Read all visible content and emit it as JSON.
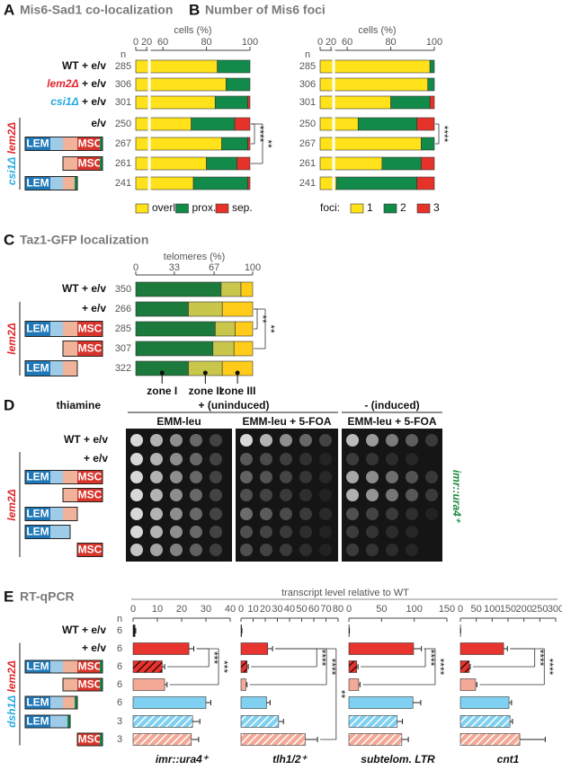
{
  "genotype_colors": {
    "lem2Δ": "#e0262b",
    "csi1Δ": "#27aae1",
    "dsh1Δ": "#27aae1"
  },
  "construct": {
    "lem": "LEM",
    "msc": "MSC"
  },
  "panel_d": {
    "label": "D",
    "condition_label": "thiamine",
    "conditions": [
      {
        "label": "+ (uninduced)",
        "media": [
          "EMM-leu",
          "EMM-leu + 5-FOA"
        ]
      },
      {
        "label": "- (induced)",
        "media": [
          "EMM-leu + 5-FOA"
        ]
      }
    ],
    "categories": [
      "WT + e/v",
      "+ e/v"
    ],
    "group_label": "lem2Δ",
    "reporter": "imr::ura4⁺"
  },
  "chart_data": [
    {
      "type": "stacked_bar",
      "panel": "A",
      "title": "Mis6-Sad1 co-localization",
      "xlabel": "cells  (%)",
      "n_label": "n",
      "categories": [
        "WT + e/v",
        "lem2Δ + e/v",
        "csi1Δ + e/v",
        "e/v",
        null,
        null,
        null
      ],
      "group_label": "csi1Δ lem2Δ",
      "n": [
        285,
        306,
        301,
        250,
        267,
        261,
        241
      ],
      "xlim": [
        0,
        100
      ],
      "xticks": [
        0,
        20,
        60,
        80,
        100
      ],
      "xbreak": [
        20,
        55
      ],
      "legend": "below",
      "series": [
        {
          "name": "overl.",
          "color": "#ffe21a",
          "values": [
            85,
            89,
            84,
            73,
            87,
            80,
            74
          ]
        },
        {
          "name": "prox.",
          "color": "#128a4a",
          "values": [
            15,
            11,
            15,
            20,
            12,
            14,
            25
          ]
        },
        {
          "name": "sep.",
          "color": "#e5332a",
          "values": [
            0,
            0,
            1,
            7,
            1,
            6,
            1
          ]
        }
      ],
      "significance": [
        "****",
        "**"
      ]
    },
    {
      "type": "stacked_bar",
      "panel": "B",
      "title": "Number of Mis6 foci",
      "xlabel": "cells  (%)",
      "n_label": "n",
      "n": [
        285,
        306,
        301,
        250,
        267,
        261,
        241
      ],
      "xlim": [
        0,
        100
      ],
      "xticks": [
        0,
        20,
        60,
        80,
        100
      ],
      "xbreak": [
        20,
        55
      ],
      "legend": "below",
      "legend_title": "foci:",
      "series": [
        {
          "name": "1",
          "color": "#ffe21a",
          "values": [
            98,
            97,
            80,
            65,
            94,
            76,
            55
          ]
        },
        {
          "name": "2",
          "color": "#128a4a",
          "values": [
            2,
            3,
            18,
            27,
            6,
            18,
            37
          ]
        },
        {
          "name": "3",
          "color": "#e5332a",
          "values": [
            0,
            0,
            2,
            8,
            0,
            6,
            8
          ]
        }
      ],
      "significance": [
        "****"
      ]
    },
    {
      "type": "stacked_bar",
      "panel": "C",
      "title": "Taz1-GFP localization",
      "xlabel": "telomeres (%)",
      "categories": [
        "WT + e/v",
        "+ e/v",
        null,
        null,
        null
      ],
      "group_label": "lem2Δ",
      "n": [
        350,
        266,
        285,
        307,
        322
      ],
      "xlim": [
        0,
        100
      ],
      "xticks": [
        0,
        33,
        67,
        100
      ],
      "legend": "under-segments",
      "series": [
        {
          "name": "zone I",
          "color": "#1c7a3c",
          "values": [
            73,
            45,
            68,
            66,
            45
          ]
        },
        {
          "name": "zone II",
          "color": "#c9c64c",
          "values": [
            17,
            29,
            17,
            18,
            29
          ]
        },
        {
          "name": "zone III",
          "color": "#ffcc1a",
          "values": [
            10,
            26,
            15,
            16,
            26
          ]
        }
      ],
      "significance": [
        "**",
        "**"
      ]
    },
    {
      "type": "bar",
      "panel": "E",
      "title": "RT-qPCR",
      "axis_title": "transcript level relative to WT",
      "n_label": "n",
      "categories": [
        "WT + e/v",
        "+ e/v",
        null,
        null,
        null,
        null,
        null
      ],
      "group_label": "dsh1Δ lem2Δ",
      "n": [
        6,
        6,
        6,
        6,
        6,
        3,
        3
      ],
      "xlabel": "imr::ura4⁺",
      "xlim": [
        0,
        40
      ],
      "xticks": [
        0,
        10,
        20,
        30,
        40
      ],
      "values": [
        0.8,
        23,
        12,
        13,
        30,
        24.5,
        24
      ],
      "errors": [
        0.3,
        2,
        1,
        1,
        2,
        3,
        3
      ],
      "colors": [
        "#111111",
        "#e8342e",
        "#e8342e",
        "#f4a896",
        "#7fd0f1",
        "#7fd0f1",
        "#f4a896"
      ],
      "hatch": [
        null,
        null,
        "#3a0c0c",
        null,
        null,
        "#ffffff",
        "#ffffff"
      ],
      "significance": [
        "***",
        "***"
      ]
    },
    {
      "type": "bar",
      "xlabel": "tlh1/2⁺",
      "xlim": [
        0,
        80
      ],
      "xticks": [
        0,
        10,
        20,
        30,
        40,
        50,
        60,
        70,
        80
      ],
      "values": [
        0.5,
        22,
        5,
        4,
        21,
        31,
        53
      ],
      "errors": [
        0.3,
        4,
        1,
        1,
        3,
        4,
        10
      ],
      "colors": [
        "#111111",
        "#e8342e",
        "#e8342e",
        "#f4a896",
        "#7fd0f1",
        "#7fd0f1",
        "#f4a896"
      ],
      "hatch": [
        null,
        null,
        "#3a0c0c",
        null,
        null,
        "#ffffff",
        "#ffffff"
      ],
      "significance": [
        "****",
        "****",
        "**"
      ]
    },
    {
      "type": "bar",
      "xlabel": "subtelom. LTR",
      "xlim": [
        0,
        150
      ],
      "xticks": [
        0,
        50,
        100,
        150
      ],
      "values": [
        0.5,
        99,
        12,
        15,
        98,
        74,
        81
      ],
      "errors": [
        0.3,
        12,
        2,
        2,
        12,
        8,
        10
      ],
      "colors": [
        "#111111",
        "#e8342e",
        "#e8342e",
        "#f4a896",
        "#7fd0f1",
        "#7fd0f1",
        "#f4a896"
      ],
      "hatch": [
        null,
        null,
        "#3a0c0c",
        null,
        null,
        "#ffffff",
        "#ffffff"
      ],
      "significance": [
        "****",
        "****"
      ]
    },
    {
      "type": "bar",
      "xlabel": "cnt1",
      "xlim": [
        0,
        300
      ],
      "xticks": [
        0,
        50,
        100,
        150,
        200,
        250,
        300
      ],
      "values": [
        0.5,
        136,
        28,
        48,
        153,
        156,
        187
      ],
      "errors": [
        0.3,
        12,
        3,
        4,
        8,
        8,
        80
      ],
      "colors": [
        "#111111",
        "#e8342e",
        "#e8342e",
        "#f4a896",
        "#7fd0f1",
        "#7fd0f1",
        "#f4a896"
      ],
      "hatch": [
        null,
        null,
        "#3a0c0c",
        null,
        null,
        "#ffffff",
        "#ffffff"
      ],
      "significance": [
        "****",
        "****"
      ]
    }
  ]
}
